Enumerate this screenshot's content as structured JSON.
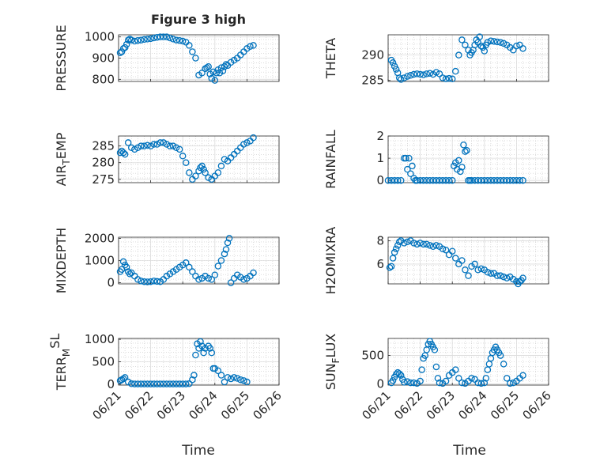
{
  "figure": {
    "title": "Figure 3 high",
    "shared_xlabel": "Time",
    "marker_color": "#0072BD",
    "grid_color": "#c8c8c8"
  },
  "chart_data": [
    {
      "type": "scatter",
      "ylabel": "PRESSURE",
      "xlim": [
        0,
        5
      ],
      "ylim": [
        790,
        1010
      ],
      "yticks": [
        800,
        900,
        1000
      ],
      "x": [
        0.05,
        0.1,
        0.15,
        0.2,
        0.25,
        0.3,
        0.35,
        0.4,
        0.5,
        0.6,
        0.7,
        0.8,
        0.9,
        1.0,
        1.1,
        1.2,
        1.3,
        1.4,
        1.5,
        1.6,
        1.7,
        1.8,
        1.9,
        2.0,
        2.1,
        2.2,
        2.3,
        2.4,
        2.5,
        2.6,
        2.7,
        2.75,
        2.8,
        2.85,
        2.9,
        2.95,
        3.0,
        3.05,
        3.1,
        3.15,
        3.2,
        3.25,
        3.3,
        3.35,
        3.4,
        3.5,
        3.6,
        3.7,
        3.8,
        3.9,
        4.0,
        4.1,
        4.2
      ],
      "y": [
        925,
        930,
        945,
        950,
        965,
        985,
        990,
        985,
        980,
        983,
        985,
        988,
        990,
        992,
        995,
        998,
        1000,
        1000,
        1000,
        995,
        990,
        985,
        983,
        980,
        975,
        960,
        930,
        900,
        820,
        830,
        850,
        855,
        860,
        825,
        805,
        835,
        795,
        830,
        845,
        830,
        855,
        840,
        860,
        870,
        865,
        880,
        890,
        900,
        915,
        930,
        945,
        955,
        960
      ]
    },
    {
      "type": "scatter",
      "ylabel": "THETA",
      "xlim": [
        0,
        5
      ],
      "ylim": [
        284.8,
        294
      ],
      "yticks": [
        285,
        290
      ],
      "x": [
        0.1,
        0.15,
        0.2,
        0.25,
        0.3,
        0.35,
        0.4,
        0.5,
        0.6,
        0.7,
        0.8,
        0.9,
        1.0,
        1.1,
        1.2,
        1.3,
        1.4,
        1.5,
        1.6,
        1.7,
        1.8,
        1.9,
        2.0,
        2.1,
        2.2,
        2.3,
        2.4,
        2.5,
        2.55,
        2.6,
        2.65,
        2.7,
        2.75,
        2.8,
        2.85,
        2.9,
        2.95,
        3.0,
        3.05,
        3.1,
        3.2,
        3.3,
        3.4,
        3.5,
        3.6,
        3.7,
        3.8,
        3.9,
        4.0,
        4.1,
        4.2
      ],
      "y": [
        289,
        288.5,
        287.8,
        287.2,
        286.5,
        285.5,
        285.2,
        285.5,
        285.8,
        286,
        286.2,
        286.3,
        286.2,
        286.1,
        286.3,
        286.4,
        286.2,
        286.6,
        286.3,
        285.5,
        285.3,
        285.4,
        285.3,
        286.8,
        290,
        293,
        292,
        291,
        290,
        290.5,
        291,
        292,
        293,
        292.5,
        293.6,
        291.8,
        291.5,
        290.8,
        292,
        292.5,
        292.8,
        292.7,
        292.6,
        292.5,
        292.3,
        292,
        291.5,
        291,
        291.8,
        292,
        291.3
      ]
    },
    {
      "type": "scatter",
      "ylabel": "AIR_TEMP",
      "xlim": [
        0,
        5
      ],
      "ylim": [
        274,
        288
      ],
      "yticks": [
        275,
        280,
        285
      ],
      "x": [
        0.05,
        0.1,
        0.15,
        0.2,
        0.3,
        0.4,
        0.5,
        0.6,
        0.7,
        0.8,
        0.9,
        1.0,
        1.1,
        1.2,
        1.3,
        1.4,
        1.5,
        1.6,
        1.7,
        1.8,
        1.9,
        2.0,
        2.1,
        2.2,
        2.3,
        2.4,
        2.5,
        2.55,
        2.6,
        2.65,
        2.7,
        2.8,
        2.9,
        3.0,
        3.1,
        3.2,
        3.3,
        3.4,
        3.5,
        3.6,
        3.7,
        3.8,
        3.9,
        4.0,
        4.1,
        4.2
      ],
      "y": [
        283,
        283.5,
        283,
        282.5,
        286,
        284.5,
        284,
        284.5,
        285,
        285,
        285.2,
        285,
        285.5,
        285.5,
        286,
        286,
        285.5,
        285,
        285,
        284.5,
        284,
        282,
        280,
        277,
        275,
        276,
        277.5,
        278.5,
        279,
        278,
        277,
        275.5,
        275,
        276,
        277,
        279,
        281,
        280.5,
        281.5,
        282.5,
        283.5,
        284.5,
        285.5,
        286,
        286.5,
        287.5
      ]
    },
    {
      "type": "scatter",
      "ylabel": "RAINFALL",
      "xlim": [
        0,
        5
      ],
      "ylim": [
        -0.1,
        2
      ],
      "yticks": [
        0,
        1,
        2
      ],
      "x": [
        0.0,
        0.1,
        0.2,
        0.3,
        0.4,
        0.5,
        0.55,
        0.6,
        0.65,
        0.7,
        0.75,
        0.8,
        0.85,
        0.9,
        1.0,
        1.1,
        1.2,
        1.3,
        1.4,
        1.5,
        1.6,
        1.7,
        1.8,
        1.9,
        2.0,
        2.05,
        2.1,
        2.15,
        2.2,
        2.25,
        2.3,
        2.35,
        2.4,
        2.45,
        2.5,
        2.55,
        2.6,
        2.7,
        2.8,
        2.9,
        3.0,
        3.1,
        3.2,
        3.3,
        3.4,
        3.5,
        3.6,
        3.7,
        3.8,
        3.9,
        4.0,
        4.1,
        4.2
      ],
      "y": [
        0,
        0,
        0,
        0,
        0,
        1.0,
        1.0,
        0.5,
        1.0,
        0.3,
        0.65,
        0.1,
        0,
        0,
        0,
        0,
        0,
        0,
        0,
        0,
        0,
        0,
        0,
        0,
        0,
        0.65,
        0.8,
        0.5,
        0.9,
        0.4,
        0.6,
        1.6,
        1.3,
        1.35,
        0,
        0,
        0,
        0,
        0,
        0,
        0,
        0,
        0,
        0,
        0,
        0,
        0,
        0,
        0,
        0,
        0,
        0,
        0
      ]
    },
    {
      "type": "scatter",
      "ylabel": "MIXDEPTH",
      "xlim": [
        0,
        5
      ],
      "ylim": [
        -50,
        2050
      ],
      "yticks": [
        0,
        1000,
        2000
      ],
      "x": [
        0.05,
        0.1,
        0.15,
        0.2,
        0.25,
        0.3,
        0.35,
        0.4,
        0.5,
        0.6,
        0.7,
        0.8,
        0.9,
        1.0,
        1.1,
        1.2,
        1.3,
        1.4,
        1.5,
        1.6,
        1.7,
        1.8,
        1.9,
        2.0,
        2.1,
        2.2,
        2.3,
        2.4,
        2.5,
        2.6,
        2.7,
        2.8,
        2.9,
        3.0,
        3.1,
        3.2,
        3.3,
        3.35,
        3.4,
        3.45,
        3.5,
        3.6,
        3.7,
        3.8,
        3.9,
        4.0,
        4.1,
        4.2
      ],
      "y": [
        500,
        600,
        950,
        800,
        700,
        500,
        400,
        450,
        300,
        150,
        80,
        50,
        40,
        50,
        80,
        60,
        50,
        150,
        300,
        400,
        500,
        600,
        700,
        800,
        900,
        700,
        500,
        300,
        150,
        200,
        300,
        200,
        150,
        350,
        750,
        1000,
        1300,
        1500,
        1800,
        2000,
        0,
        200,
        350,
        250,
        150,
        200,
        300,
        450
      ]
    },
    {
      "type": "scatter",
      "ylabel": "H2OMIXRA",
      "xlim": [
        0,
        5
      ],
      "ylim": [
        4.3,
        8.3
      ],
      "yticks": [
        6,
        8
      ],
      "x": [
        0.05,
        0.1,
        0.15,
        0.2,
        0.25,
        0.3,
        0.35,
        0.4,
        0.5,
        0.6,
        0.7,
        0.8,
        0.9,
        1.0,
        1.1,
        1.2,
        1.3,
        1.4,
        1.5,
        1.6,
        1.7,
        1.8,
        1.9,
        2.0,
        2.1,
        2.2,
        2.3,
        2.4,
        2.5,
        2.6,
        2.7,
        2.8,
        2.9,
        3.0,
        3.1,
        3.2,
        3.3,
        3.4,
        3.5,
        3.6,
        3.7,
        3.8,
        3.9,
        4.0,
        4.05,
        4.1,
        4.15,
        4.2
      ],
      "y": [
        5.7,
        5.8,
        6.5,
        7.0,
        7.3,
        7.6,
        7.9,
        8.0,
        7.8,
        7.9,
        8.0,
        7.8,
        7.7,
        7.8,
        7.7,
        7.7,
        7.6,
        7.5,
        7.6,
        7.5,
        7.3,
        7.2,
        6.8,
        7.1,
        6.5,
        6.0,
        6.3,
        5.5,
        5.0,
        5.8,
        6.0,
        5.5,
        5.6,
        5.5,
        5.3,
        5.2,
        5.2,
        5.0,
        5.0,
        4.9,
        4.8,
        4.9,
        4.7,
        4.5,
        4.3,
        4.5,
        4.6,
        4.8
      ]
    },
    {
      "type": "scatter",
      "ylabel": "TERR_MSL",
      "xlim": [
        0,
        5
      ],
      "ylim": [
        -20,
        1020
      ],
      "yticks": [
        0,
        500,
        1000
      ],
      "x": [
        0.05,
        0.1,
        0.15,
        0.2,
        0.3,
        0.4,
        0.5,
        0.6,
        0.7,
        0.8,
        0.9,
        1.0,
        1.1,
        1.2,
        1.3,
        1.4,
        1.5,
        1.6,
        1.7,
        1.8,
        1.9,
        2.0,
        2.1,
        2.2,
        2.3,
        2.35,
        2.4,
        2.45,
        2.5,
        2.55,
        2.6,
        2.65,
        2.7,
        2.8,
        2.85,
        2.9,
        2.95,
        3.0,
        3.1,
        3.2,
        3.3,
        3.4,
        3.5,
        3.6,
        3.7,
        3.8,
        3.9,
        4.0
      ],
      "y": [
        80,
        100,
        120,
        150,
        50,
        10,
        5,
        5,
        5,
        5,
        5,
        5,
        5,
        5,
        5,
        5,
        5,
        5,
        5,
        5,
        5,
        5,
        5,
        10,
        100,
        200,
        650,
        900,
        800,
        950,
        850,
        700,
        800,
        850,
        800,
        700,
        350,
        350,
        300,
        200,
        50,
        150,
        120,
        150,
        130,
        100,
        80,
        50
      ]
    },
    {
      "type": "scatter",
      "ylabel": "SUN_FLUX",
      "xlim": [
        0,
        5
      ],
      "ylim": [
        -20,
        800
      ],
      "yticks": [
        0,
        500
      ],
      "x": [
        0.1,
        0.15,
        0.2,
        0.25,
        0.3,
        0.35,
        0.4,
        0.45,
        0.5,
        0.6,
        0.7,
        0.8,
        0.9,
        1.0,
        1.05,
        1.1,
        1.15,
        1.2,
        1.25,
        1.3,
        1.35,
        1.4,
        1.45,
        1.5,
        1.55,
        1.6,
        1.7,
        1.8,
        1.9,
        2.0,
        2.1,
        2.2,
        2.3,
        2.4,
        2.5,
        2.6,
        2.7,
        2.8,
        2.9,
        3.0,
        3.05,
        3.1,
        3.15,
        3.2,
        3.25,
        3.3,
        3.35,
        3.4,
        3.45,
        3.5,
        3.6,
        3.7,
        3.8,
        3.9,
        4.0,
        4.1,
        4.2
      ],
      "y": [
        20,
        60,
        120,
        170,
        200,
        180,
        150,
        80,
        30,
        40,
        20,
        20,
        10,
        50,
        250,
        450,
        500,
        600,
        700,
        750,
        700,
        650,
        600,
        300,
        100,
        20,
        10,
        50,
        150,
        200,
        250,
        100,
        20,
        10,
        50,
        100,
        80,
        20,
        10,
        20,
        100,
        250,
        350,
        450,
        550,
        600,
        650,
        600,
        550,
        500,
        350,
        100,
        10,
        20,
        50,
        100,
        150
      ]
    }
  ],
  "axes_text": {
    "xticks": [
      "06/21",
      "06/22",
      "06/23",
      "06/24",
      "06/25",
      "06/26"
    ],
    "labels": [
      {
        "main": "PRESSURE",
        "sub": "",
        "tail": "",
        "sup": false
      },
      {
        "main": "THETA",
        "sub": "",
        "tail": "",
        "sup": false
      },
      {
        "main": "AIR",
        "sub": "T",
        "tail": "EMP",
        "sup": false
      },
      {
        "main": "RAINFALL",
        "sub": "",
        "tail": "",
        "sup": false
      },
      {
        "main": "MIXDEPTH",
        "sub": "",
        "tail": "",
        "sup": false
      },
      {
        "main": "H2OMIXRA",
        "sub": "",
        "tail": "",
        "sup": false
      },
      {
        "main": "TERR",
        "sub": "M",
        "tail": "SL",
        "sup": true
      },
      {
        "main": "SUN",
        "sub": "F",
        "tail": "LUX",
        "sup": false
      }
    ]
  }
}
